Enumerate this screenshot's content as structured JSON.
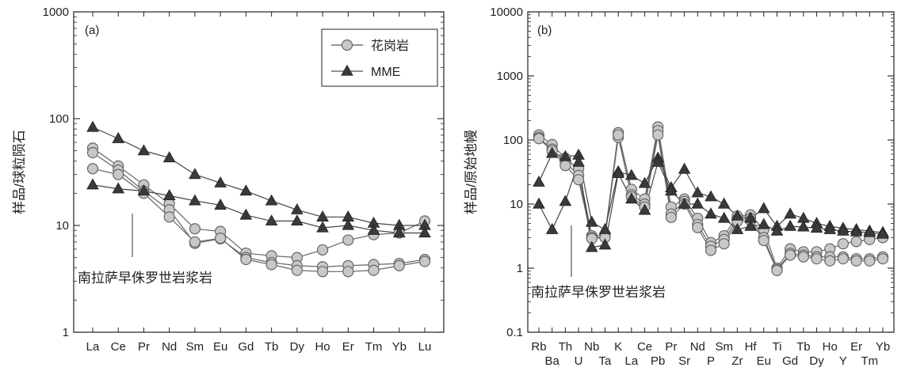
{
  "chart_data": [
    {
      "panel": "(a)",
      "type": "line",
      "ylabel": "样品/球粒陨石",
      "yscale": "log",
      "ylim": [
        1,
        1000
      ],
      "yticks": [
        "1",
        "10",
        "100",
        "1000"
      ],
      "categories": [
        "La",
        "Ce",
        "Pr",
        "Nd",
        "Sm",
        "Eu",
        "Gd",
        "Tb",
        "Dy",
        "Ho",
        "Er",
        "Tm",
        "Yb",
        "Lu"
      ],
      "legend": {
        "position": "top-right",
        "entries": [
          {
            "label": "花岗岩",
            "marker": "circle"
          },
          {
            "label": "MME",
            "marker": "triangle"
          }
        ]
      },
      "annotation": "南拉萨早侏罗世岩浆岩",
      "series": [
        {
          "group": "花岗岩",
          "marker": "circle",
          "values": [
            53,
            36,
            24,
            16,
            9.3,
            8.8,
            5.5,
            5.2,
            5.0,
            5.9,
            7.3,
            8.2,
            8.5,
            11
          ]
        },
        {
          "group": "花岗岩",
          "marker": "circle",
          "values": [
            48,
            33,
            21,
            14,
            6.8,
            7.5,
            5.0,
            4.5,
            4.2,
            4.1,
            4.2,
            4.3,
            4.4,
            4.8
          ]
        },
        {
          "group": "花岗岩",
          "marker": "circle",
          "values": [
            34,
            30,
            20,
            12,
            7.0,
            7.6,
            4.8,
            4.3,
            3.8,
            3.7,
            3.7,
            3.8,
            4.2,
            4.6
          ]
        },
        {
          "group": "MME",
          "marker": "triangle",
          "values": [
            83,
            65,
            50,
            43,
            30,
            25,
            21,
            17,
            14,
            12,
            12,
            10.5,
            10,
            10
          ]
        },
        {
          "group": "MME",
          "marker": "triangle",
          "values": [
            24,
            22,
            21,
            19,
            17,
            15.5,
            12.5,
            11,
            11,
            9.5,
            10,
            9.0,
            8.5,
            8.5
          ]
        }
      ]
    },
    {
      "panel": "(b)",
      "type": "line",
      "ylabel": "样品/原始地幔",
      "yscale": "log",
      "ylim": [
        0.1,
        10000
      ],
      "yticks": [
        "0.1",
        "1",
        "10",
        "100",
        "1000",
        "10000"
      ],
      "categories": [
        "Rb",
        "Ba",
        "Th",
        "U",
        "Nb",
        "Ta",
        "K",
        "La",
        "Ce",
        "Pb",
        "Pr",
        "Sr",
        "Nd",
        "P",
        "Sm",
        "Zr",
        "Hf",
        "Eu",
        "Ti",
        "Gd",
        "Tb",
        "Dy",
        "Ho",
        "Y",
        "Er",
        "Tm",
        "Yb"
      ],
      "annotation": "南拉萨早侏罗世岩浆岩",
      "series": [
        {
          "group": "花岗岩",
          "marker": "circle",
          "values": [
            120,
            85,
            52,
            35,
            3.2,
            3.3,
            130,
            17,
            12,
            160,
            9.0,
            12,
            6.0,
            2.5,
            3.2,
            6.5,
            6.8,
            4.0,
            1.0,
            2.0,
            1.8,
            1.8,
            2.0,
            2.4,
            2.6,
            2.8,
            3.0
          ]
        },
        {
          "group": "花岗岩",
          "marker": "circle",
          "values": [
            110,
            72,
            45,
            28,
            3.0,
            3.1,
            110,
            14,
            10,
            140,
            7.0,
            11,
            4.8,
            2.2,
            2.8,
            5.8,
            6.0,
            3.0,
            0.95,
            1.7,
            1.6,
            1.5,
            1.5,
            1.5,
            1.4,
            1.4,
            1.5
          ]
        },
        {
          "group": "花岗岩",
          "marker": "circle",
          "values": [
            105,
            68,
            40,
            24,
            2.9,
            3.0,
            120,
            13,
            9.0,
            120,
            6.2,
            10,
            4.3,
            1.9,
            2.4,
            5.4,
            5.5,
            2.7,
            0.92,
            1.6,
            1.5,
            1.4,
            1.3,
            1.4,
            1.3,
            1.3,
            1.4
          ]
        },
        {
          "group": "MME",
          "marker": "triangle",
          "values": [
            22,
            62,
            55,
            58,
            5.2,
            4.0,
            32,
            28,
            21,
            52,
            18,
            35,
            15,
            13,
            10,
            6.5,
            6.0,
            8.5,
            4.5,
            7.0,
            6.0,
            5.0,
            4.5,
            4.2,
            4.0,
            3.8,
            3.6
          ]
        },
        {
          "group": "MME",
          "marker": "triangle",
          "values": [
            10,
            4.0,
            11,
            45,
            2.1,
            2.3,
            30,
            12,
            8.0,
            45,
            16,
            10,
            10,
            7.0,
            6.0,
            4.0,
            4.5,
            4.8,
            3.8,
            4.5,
            4.4,
            4.2,
            4.0,
            3.8,
            3.7,
            3.6,
            3.4
          ]
        }
      ]
    }
  ]
}
